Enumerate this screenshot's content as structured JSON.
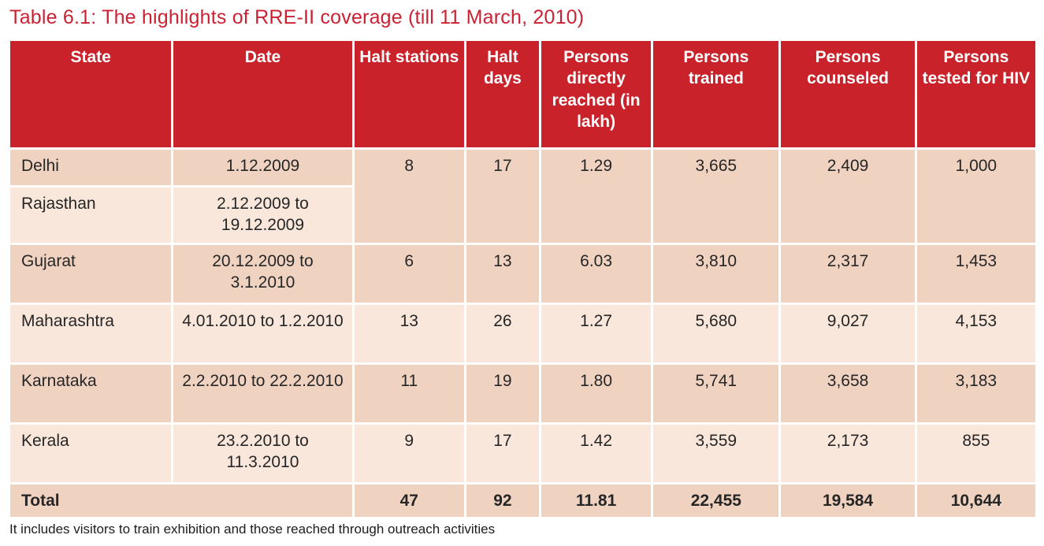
{
  "title": "Table 6.1: The highlights of RRE-II coverage (till 11 March, 2010)",
  "colors": {
    "title_text": "#CB2233",
    "header_bg": "#C9222A",
    "header_text": "#FFFFFF",
    "row_dark_bg": "#F0D2C1",
    "row_light_bg": "#F9E7DB",
    "body_text": "#262626"
  },
  "table": {
    "columns": [
      {
        "label": "State"
      },
      {
        "label": "Date"
      },
      {
        "label": "Halt stations"
      },
      {
        "label": "Halt days"
      },
      {
        "label": "Persons directly reached (in lakh)"
      },
      {
        "label": "Persons trained"
      },
      {
        "label": "Persons counseled"
      },
      {
        "label": "Persons tested for HIV"
      }
    ],
    "rows": [
      {
        "state": "Delhi",
        "date": "1.12.2009",
        "halt_stations": "8",
        "halt_days": "17",
        "persons_reached": "1.29",
        "persons_trained": "3,665",
        "persons_counseled": "2,409",
        "persons_tested": "1,000"
      },
      {
        "state": "Rajasthan",
        "date": "2.12.2009 to 19.12.2009"
      },
      {
        "state": "Gujarat",
        "date": "20.12.2009 to 3.1.2010",
        "halt_stations": "6",
        "halt_days": "13",
        "persons_reached": "6.03",
        "persons_trained": "3,810",
        "persons_counseled": "2,317",
        "persons_tested": "1,453"
      },
      {
        "state": "Maharashtra",
        "date": "4.01.2010 to 1.2.2010",
        "halt_stations": "13",
        "halt_days": "26",
        "persons_reached": "1.27",
        "persons_trained": "5,680",
        "persons_counseled": "9,027",
        "persons_tested": "4,153"
      },
      {
        "state": "Karnataka",
        "date": "2.2.2010 to 22.2.2010",
        "halt_stations": "11",
        "halt_days": "19",
        "persons_reached": "1.80",
        "persons_trained": "5,741",
        "persons_counseled": "3,658",
        "persons_tested": "3,183"
      },
      {
        "state": "Kerala",
        "date": "23.2.2010 to 11.3.2010",
        "halt_stations": "9",
        "halt_days": "17",
        "persons_reached": "1.42",
        "persons_trained": "3,559",
        "persons_counseled": "2,173",
        "persons_tested": "855"
      }
    ],
    "total_row": {
      "label": "Total",
      "halt_stations": "47",
      "halt_days": "92",
      "persons_reached": "11.81",
      "persons_trained": "22,455",
      "persons_counseled": "19,584",
      "persons_tested": "10,644"
    }
  },
  "footnote": "It includes visitors to train exhibition and those reached through outreach activities"
}
